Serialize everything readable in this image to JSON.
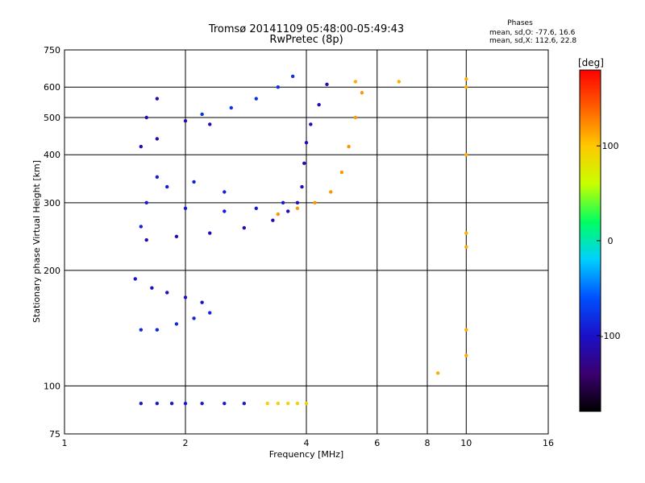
{
  "chart_data": {
    "type": "scatter",
    "title": "Tromsø 20141109 05:48:00-05:49:43",
    "subtitle": "RwPretec (8p)",
    "xlabel": "Frequency [MHz]",
    "ylabel": "Stationary phase Virtual Height [km]",
    "x_scale": "log",
    "y_scale": "log",
    "xlim": [
      1,
      16
    ],
    "ylim": [
      75,
      750
    ],
    "x_ticks": [
      1,
      2,
      4,
      6,
      8,
      10,
      16
    ],
    "y_ticks": [
      75,
      100,
      200,
      300,
      400,
      500,
      600,
      750
    ],
    "grid": true,
    "stats": {
      "heading": "Phases",
      "line_o": "mean, sd,O: -77.6, 16.6",
      "line_x": "mean, sd,X: 112.6, 22.8"
    },
    "colorbar": {
      "label": "[deg]",
      "range": [
        -180,
        180
      ],
      "ticks": [
        100,
        0,
        -100
      ],
      "colors": [
        "#000000",
        "#3a0070",
        "#1a10c8",
        "#0050ff",
        "#00d0ff",
        "#00ff60",
        "#c8ff00",
        "#ffc800",
        "#ff6000",
        "#ff0000"
      ]
    },
    "traces": [
      {
        "phase": -95,
        "points": [
          [
            1.55,
            90
          ],
          [
            1.7,
            90
          ],
          [
            1.85,
            90
          ],
          [
            2.0,
            90
          ],
          [
            2.2,
            90
          ],
          [
            2.5,
            90
          ],
          [
            2.8,
            90
          ]
        ]
      },
      {
        "phase": 95,
        "points": [
          [
            3.2,
            90
          ],
          [
            3.4,
            90
          ],
          [
            3.6,
            90
          ],
          [
            3.8,
            90
          ],
          [
            4.0,
            90
          ]
        ]
      },
      {
        "phase": -85,
        "points": [
          [
            1.55,
            140
          ],
          [
            1.7,
            140
          ],
          [
            1.9,
            145
          ],
          [
            2.1,
            150
          ],
          [
            2.3,
            155
          ]
        ]
      },
      {
        "phase": -100,
        "points": [
          [
            1.5,
            190
          ],
          [
            1.65,
            180
          ],
          [
            1.8,
            175
          ],
          [
            2.0,
            170
          ],
          [
            2.2,
            165
          ]
        ]
      },
      {
        "phase": -110,
        "points": [
          [
            1.6,
            240
          ],
          [
            1.9,
            245
          ],
          [
            2.3,
            250
          ],
          [
            2.8,
            258
          ],
          [
            3.3,
            270
          ],
          [
            3.6,
            285
          ],
          [
            3.8,
            300
          ],
          [
            3.9,
            330
          ],
          [
            3.95,
            380
          ],
          [
            4.0,
            430
          ],
          [
            4.1,
            480
          ],
          [
            4.3,
            540
          ],
          [
            4.5,
            610
          ]
        ]
      },
      {
        "phase": -95,
        "points": [
          [
            1.6,
            300
          ],
          [
            2.0,
            290
          ],
          [
            2.5,
            285
          ],
          [
            3.0,
            290
          ],
          [
            3.5,
            300
          ]
        ]
      },
      {
        "phase": 120,
        "points": [
          [
            3.4,
            280
          ],
          [
            3.8,
            290
          ],
          [
            4.2,
            300
          ],
          [
            4.6,
            320
          ],
          [
            4.9,
            360
          ],
          [
            5.1,
            420
          ],
          [
            5.3,
            500
          ],
          [
            5.5,
            580
          ]
        ]
      },
      {
        "phase": -110,
        "points": [
          [
            1.55,
            420
          ],
          [
            1.7,
            440
          ],
          [
            1.6,
            500
          ],
          [
            1.7,
            560
          ],
          [
            2.0,
            490
          ],
          [
            2.3,
            480
          ]
        ]
      },
      {
        "phase": -80,
        "points": [
          [
            2.2,
            510
          ],
          [
            2.6,
            530
          ],
          [
            3.0,
            560
          ],
          [
            3.4,
            600
          ],
          [
            3.7,
            640
          ]
        ]
      },
      {
        "phase": -90,
        "points": [
          [
            1.55,
            260
          ],
          [
            1.7,
            350
          ],
          [
            1.8,
            330
          ],
          [
            2.1,
            340
          ],
          [
            2.5,
            320
          ]
        ]
      },
      {
        "phase": 110,
        "points": [
          [
            10,
            120
          ],
          [
            10,
            140
          ],
          [
            10,
            230
          ],
          [
            10,
            250
          ],
          [
            10,
            400
          ],
          [
            10,
            600
          ],
          [
            10,
            630
          ],
          [
            6.8,
            620
          ],
          [
            5.3,
            620
          ],
          [
            8.5,
            108
          ]
        ]
      }
    ]
  }
}
